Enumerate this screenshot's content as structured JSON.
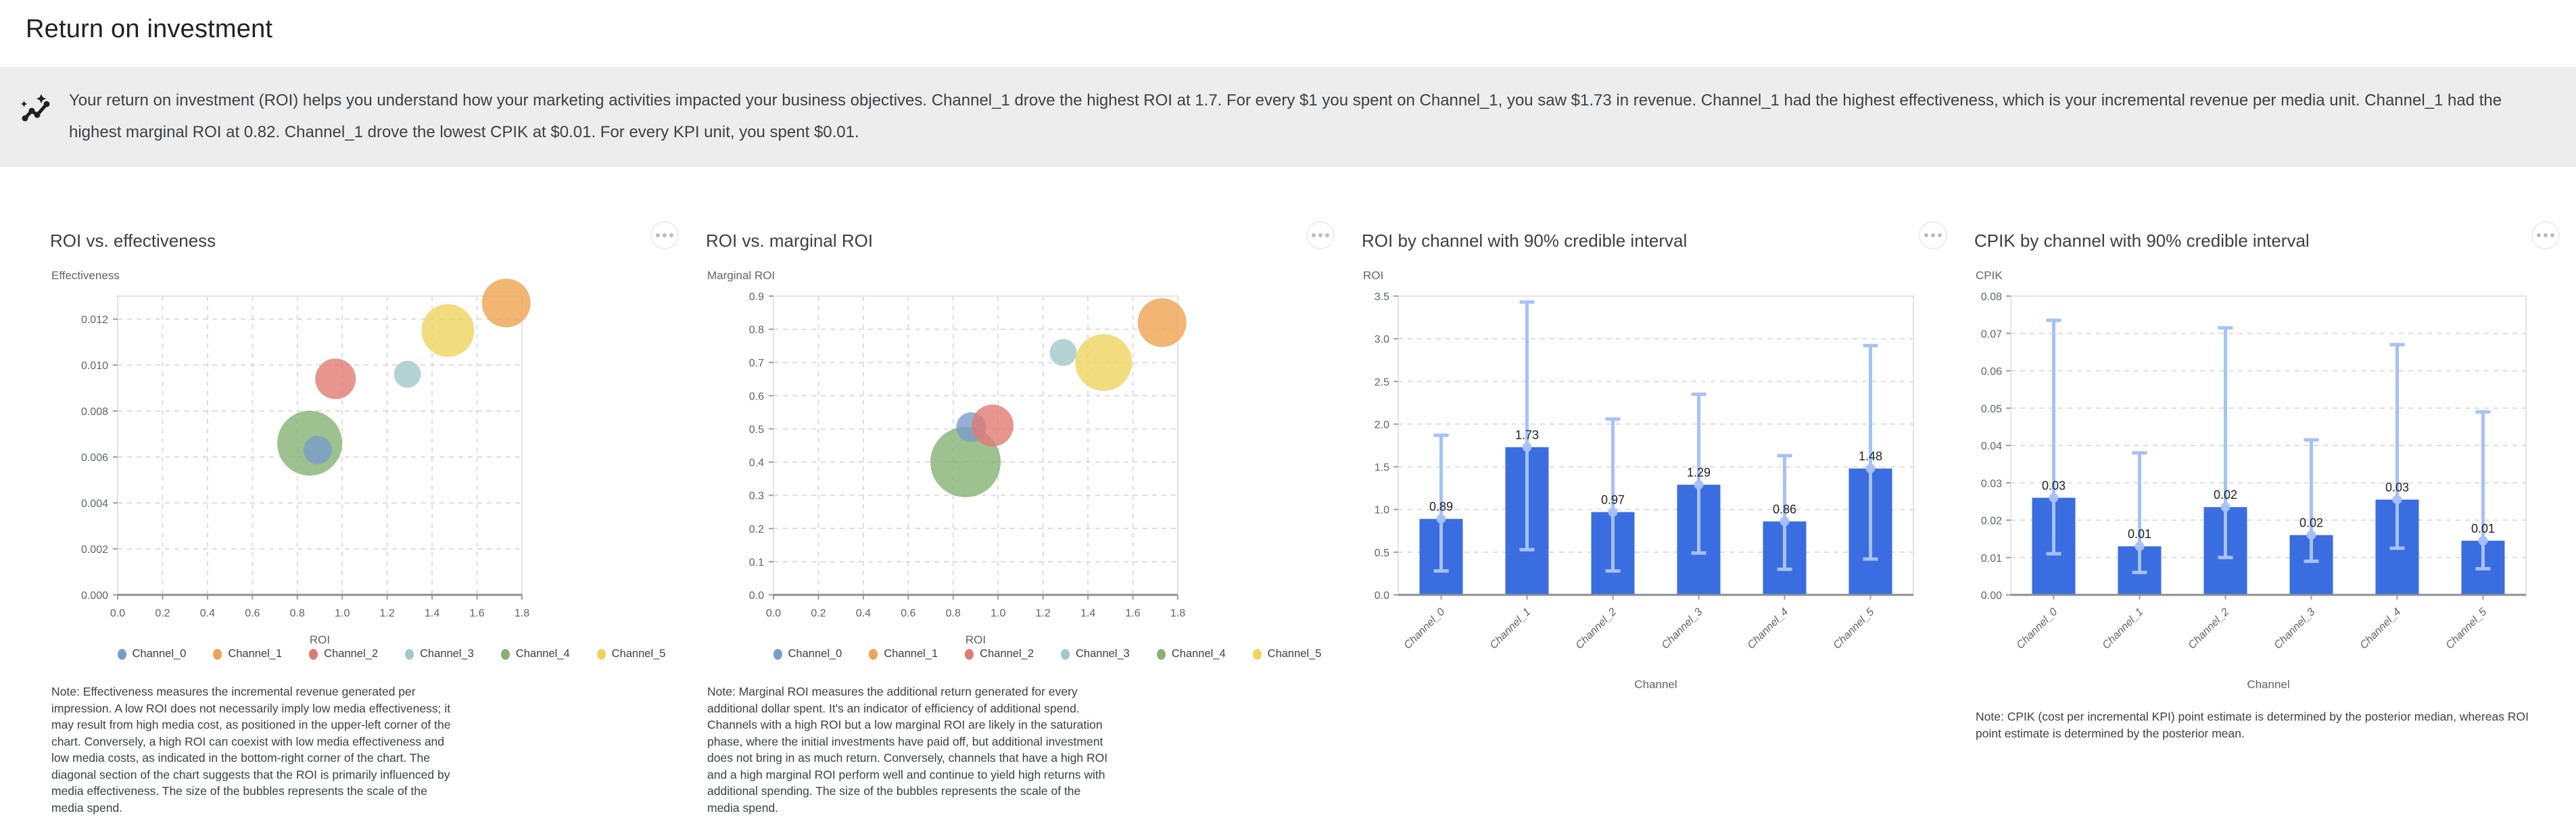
{
  "page_title": "Return on investment",
  "insight": {
    "icon": "insights-icon",
    "text": "Your return on investment (ROI) helps you understand how your marketing activities impacted your business objectives. Channel_1 drove the highest ROI at 1.7. For every $1 you spent on Channel_1, you saw $1.73 in revenue. Channel_1 had the highest effectiveness, which is your incremental revenue per media unit. Channel_1 had the highest marginal ROI at 0.82. Channel_1 drove the lowest CPIK at $0.01. For every KPI unit, you spent $0.01."
  },
  "legend": {
    "channels": [
      "Channel_0",
      "Channel_1",
      "Channel_2",
      "Channel_3",
      "Channel_4",
      "Channel_5"
    ],
    "colors": [
      "#7b9cc9",
      "#efa351",
      "#e07a73",
      "#a3c8cb",
      "#85b173",
      "#eed45f"
    ]
  },
  "colors": {
    "bar": "#3a6de0",
    "credible_interval": "#a6c1f7",
    "grid": "#dcdddf",
    "plot_border": "#e3e4e6",
    "axis_line": "#8a8f94"
  },
  "icons": {
    "insight": "insights-icon",
    "chart_menu": "more-horizontal-icon"
  },
  "chart_data": [
    {
      "type": "scatter",
      "title": "ROI vs. effectiveness",
      "y_axis_title": "Effectiveness",
      "x_axis_title": "ROI",
      "x_ticks": [
        0.0,
        0.2,
        0.4,
        0.6,
        0.8,
        1.0,
        1.2,
        1.4,
        1.6,
        1.8
      ],
      "x_tick_labels": [
        "0.0",
        "0.2",
        "0.4",
        "0.6",
        "0.8",
        "1.0",
        "1.2",
        "1.4",
        "1.6",
        "1.8"
      ],
      "x_max": 1.8,
      "y_ticks": [
        0.0,
        0.002,
        0.004,
        0.006,
        0.008,
        0.01,
        0.012
      ],
      "y_tick_labels": [
        "0.000",
        "0.002",
        "0.004",
        "0.006",
        "0.008",
        "0.010",
        "0.012"
      ],
      "y_max": 0.013,
      "points": [
        {
          "channel": "Channel_0",
          "x": 0.89,
          "y": 0.0063,
          "r": 21
        },
        {
          "channel": "Channel_1",
          "x": 1.73,
          "y": 0.0127,
          "r": 36
        },
        {
          "channel": "Channel_2",
          "x": 0.97,
          "y": 0.0094,
          "r": 30
        },
        {
          "channel": "Channel_3",
          "x": 1.29,
          "y": 0.0096,
          "r": 20
        },
        {
          "channel": "Channel_4",
          "x": 0.855,
          "y": 0.0066,
          "r": 48
        },
        {
          "channel": "Channel_5",
          "x": 1.47,
          "y": 0.0115,
          "r": 39
        }
      ],
      "draw_order": [
        4,
        0,
        2,
        3,
        5,
        1
      ],
      "note": "Note: Effectiveness measures the incremental revenue generated per impression. A low ROI does not necessarily imply low media effectiveness; it may result from high media cost, as positioned in the upper-left corner of the chart. Conversely, a high ROI can coexist with low media effectiveness and low media costs, as indicated in the bottom-right corner of the chart. The diagonal section of the chart suggests that the ROI is primarily influenced by media effectiveness. The size of the bubbles represents the scale of the media spend."
    },
    {
      "type": "scatter",
      "title": "ROI vs. marginal ROI",
      "y_axis_title": "Marginal ROI",
      "x_axis_title": "ROI",
      "x_ticks": [
        0.0,
        0.2,
        0.4,
        0.6,
        0.8,
        1.0,
        1.2,
        1.4,
        1.6,
        1.8
      ],
      "x_tick_labels": [
        "0.0",
        "0.2",
        "0.4",
        "0.6",
        "0.8",
        "1.0",
        "1.2",
        "1.4",
        "1.6",
        "1.8"
      ],
      "x_max": 1.8,
      "y_ticks": [
        0.0,
        0.1,
        0.2,
        0.3,
        0.4,
        0.5,
        0.6,
        0.7,
        0.8,
        0.9
      ],
      "y_tick_labels": [
        "0.0",
        "0.1",
        "0.2",
        "0.3",
        "0.4",
        "0.5",
        "0.6",
        "0.7",
        "0.8",
        "0.9"
      ],
      "y_max": 0.9,
      "points": [
        {
          "channel": "Channel_0",
          "x": 0.88,
          "y": 0.505,
          "r": 22
        },
        {
          "channel": "Channel_1",
          "x": 1.73,
          "y": 0.82,
          "r": 36
        },
        {
          "channel": "Channel_2",
          "x": 0.975,
          "y": 0.51,
          "r": 31
        },
        {
          "channel": "Channel_3",
          "x": 1.29,
          "y": 0.73,
          "r": 20
        },
        {
          "channel": "Channel_4",
          "x": 0.855,
          "y": 0.4,
          "r": 52
        },
        {
          "channel": "Channel_5",
          "x": 1.47,
          "y": 0.7,
          "r": 42
        }
      ],
      "draw_order": [
        4,
        0,
        2,
        3,
        5,
        1
      ],
      "note": "Note: Marginal ROI measures the additional return generated for every additional dollar spent. It's an indicator of efficiency of additional spend. Channels with a high ROI but a low marginal ROI are likely in the saturation phase, where the initial investments have paid off, but additional investment does not bring in as much return. Conversely, channels that have a high ROI and a high marginal ROI perform well and continue to yield high returns with additional spending. The size of the bubbles represents the scale of the media spend."
    },
    {
      "type": "bar",
      "title": "ROI by channel with 90% credible interval",
      "y_axis_title": "ROI",
      "x_axis_title": "Channel",
      "categories": [
        "Channel_0",
        "Channel_1",
        "Channel_2",
        "Channel_3",
        "Channel_4",
        "Channel_5"
      ],
      "values": [
        0.89,
        1.73,
        0.97,
        1.29,
        0.86,
        1.48
      ],
      "labels": [
        "0.89",
        "1.73",
        "0.97",
        "1.29",
        "0.86",
        "1.48"
      ],
      "ci_low": [
        0.28,
        0.53,
        0.28,
        0.49,
        0.3,
        0.42
      ],
      "ci_high": [
        1.87,
        3.43,
        2.06,
        2.35,
        1.63,
        2.92
      ],
      "y_ticks": [
        0.0,
        0.5,
        1.0,
        1.5,
        2.0,
        2.5,
        3.0,
        3.5
      ],
      "y_tick_labels": [
        "0.0",
        "0.5",
        "1.0",
        "1.5",
        "2.0",
        "2.5",
        "3.0",
        "3.5"
      ],
      "y_max": 3.5,
      "note": null
    },
    {
      "type": "bar",
      "title": "CPIK by channel with 90% credible interval",
      "y_axis_title": "CPIK",
      "x_axis_title": "Channel",
      "categories": [
        "Channel_0",
        "Channel_1",
        "Channel_2",
        "Channel_3",
        "Channel_4",
        "Channel_5"
      ],
      "values": [
        0.026,
        0.013,
        0.0235,
        0.016,
        0.0255,
        0.0145
      ],
      "labels": [
        "0.03",
        "0.01",
        "0.02",
        "0.02",
        "0.03",
        "0.01"
      ],
      "ci_low": [
        0.011,
        0.006,
        0.01,
        0.009,
        0.0125,
        0.007
      ],
      "ci_high": [
        0.0735,
        0.038,
        0.0715,
        0.0415,
        0.067,
        0.049
      ],
      "y_ticks": [
        0.0,
        0.01,
        0.02,
        0.03,
        0.04,
        0.05,
        0.06,
        0.07,
        0.08
      ],
      "y_tick_labels": [
        "0.00",
        "0.01",
        "0.02",
        "0.03",
        "0.04",
        "0.05",
        "0.06",
        "0.07",
        "0.08"
      ],
      "y_max": 0.08,
      "note": "Note: CPIK (cost per incremental KPI) point estimate is determined by the posterior median, whereas ROI point estimate is determined by the posterior mean."
    }
  ]
}
